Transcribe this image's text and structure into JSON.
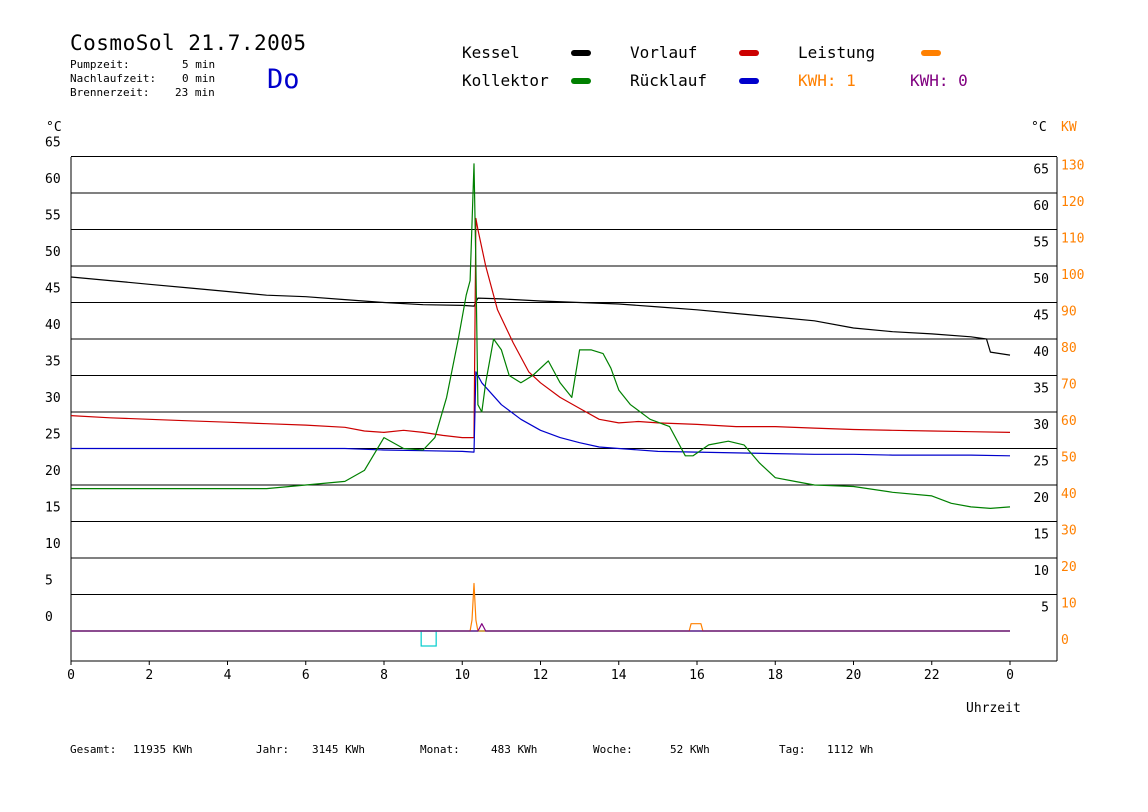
{
  "header": {
    "title": "CosmoSol 21.7.2005",
    "day": "Do",
    "pumpzeit_label": "Pumpzeit:",
    "pumpzeit_value": "5 min",
    "nachlaufzeit_label": "Nachlaufzeit:",
    "nachlaufzeit_value": "0 min",
    "brennerzeit_label": "Brennerzeit:",
    "brennerzeit_value": "23 min"
  },
  "legend": {
    "kessel": "Kessel",
    "kollektor": "Kollektor",
    "vorlauf": "Vorlauf",
    "ruecklauf": "Rücklauf",
    "leistung": "Leistung",
    "kwh1": "KWH: 1",
    "kwh0": "KWH: 0"
  },
  "colors": {
    "kessel": "#000000",
    "kollektor": "#008000",
    "vorlauf": "#cc0000",
    "ruecklauf": "#0000cc",
    "leistung": "#ff8000",
    "kwh1": "#ff8000",
    "kwh0": "#800080",
    "pump": "#00cccc",
    "kw_axis": "#ff8000",
    "day": "#0000cc"
  },
  "axes": {
    "left_unit": "°C",
    "right_unit_c": "°C",
    "right_unit_kw": "KW",
    "x_label": "Uhrzeit"
  },
  "footer": {
    "gesamt_label": "Gesamt:",
    "gesamt_value": "11935 KWh",
    "jahr_label": "Jahr:",
    "jahr_value": "3145 KWh",
    "monat_label": "Monat:",
    "monat_value": "483 KWh",
    "woche_label": "Woche:",
    "woche_value": "52 KWh",
    "tag_label": "Tag:",
    "tag_value": "1112 Wh"
  },
  "chart_data": {
    "type": "line",
    "xlabel": "Uhrzeit",
    "ylabel": "°C",
    "y2label": "KW",
    "xlim": [
      0,
      24
    ],
    "ylim": [
      -2,
      67
    ],
    "grid": true,
    "legend_placement": "top",
    "x_ticks": [
      "0",
      "2",
      "4",
      "6",
      "8",
      "10",
      "12",
      "14",
      "16",
      "18",
      "20",
      "22",
      "0"
    ],
    "y_ticks_left": [
      "0",
      "5",
      "10",
      "15",
      "20",
      "25",
      "30",
      "35",
      "40",
      "45",
      "50",
      "55",
      "60",
      "65"
    ],
    "y_ticks_right_c": [
      "5",
      "10",
      "15",
      "20",
      "25",
      "30",
      "35",
      "40",
      "45",
      "50",
      "55",
      "60",
      "65"
    ],
    "y_ticks_right_kw": [
      "0",
      "10",
      "20",
      "30",
      "40",
      "50",
      "60",
      "70",
      "80",
      "90",
      "100",
      "110",
      "120",
      "130"
    ],
    "series": [
      {
        "name": "Kessel",
        "color": "#000000",
        "x": [
          0,
          1,
          2,
          3,
          4,
          5,
          6,
          7,
          8,
          9,
          10,
          10.3,
          10.4,
          11,
          12,
          13,
          14,
          15,
          16,
          17,
          18,
          19,
          20,
          21,
          22,
          23,
          23.4,
          23.5,
          24
        ],
        "y": [
          48.5,
          48,
          47.5,
          47,
          46.5,
          46,
          45.8,
          45.4,
          45,
          44.7,
          44.6,
          44.5,
          45.6,
          45.5,
          45.2,
          45,
          44.8,
          44.4,
          44,
          43.5,
          43,
          42.5,
          41.5,
          41,
          40.7,
          40.3,
          40,
          38.2,
          37.8
        ]
      },
      {
        "name": "Kollektor",
        "color": "#008000",
        "x": [
          0,
          2,
          4,
          5,
          6,
          7,
          7.5,
          8,
          8.5,
          9,
          9.3,
          9.6,
          9.9,
          10.1,
          10.2,
          10.3,
          10.35,
          10.4,
          10.5,
          10.6,
          10.8,
          11,
          11.2,
          11.5,
          11.8,
          12.2,
          12.5,
          12.8,
          13,
          13.3,
          13.6,
          13.8,
          14,
          14.3,
          14.8,
          15.3,
          15.7,
          15.9,
          16.3,
          16.8,
          17.2,
          17.6,
          18,
          18.5,
          19,
          20,
          21,
          22,
          22.5,
          23,
          23.5,
          24
        ],
        "y": [
          19.5,
          19.5,
          19.5,
          19.5,
          20,
          20.5,
          22,
          26.5,
          25,
          24.8,
          26.5,
          32,
          40,
          46,
          48,
          64,
          50,
          31,
          30,
          34,
          40,
          38.5,
          35,
          34,
          35,
          37,
          34,
          32,
          38.5,
          38.5,
          38,
          36,
          33,
          31,
          29,
          28,
          24,
          24,
          25.5,
          26,
          25.5,
          23,
          21,
          20.5,
          20,
          19.8,
          19,
          18.5,
          17.5,
          17,
          16.8,
          17
        ]
      },
      {
        "name": "Vorlauf",
        "color": "#cc0000",
        "x": [
          0,
          1,
          2,
          3,
          4,
          5,
          6,
          7,
          7.5,
          8,
          8.5,
          9,
          9.5,
          10,
          10.3,
          10.35,
          10.4,
          10.6,
          10.9,
          11.3,
          11.7,
          12,
          12.5,
          13,
          13.5,
          14,
          14.5,
          15,
          16,
          17,
          18,
          19,
          20,
          21,
          22,
          23,
          24
        ],
        "y": [
          29.5,
          29.2,
          29,
          28.8,
          28.6,
          28.4,
          28.2,
          27.9,
          27.4,
          27.2,
          27.5,
          27.2,
          26.8,
          26.5,
          26.5,
          56.5,
          55,
          50,
          44,
          39.5,
          35.5,
          34,
          32,
          30.5,
          29,
          28.5,
          28.7,
          28.5,
          28.3,
          28,
          28,
          27.8,
          27.6,
          27.5,
          27.4,
          27.3,
          27.2
        ]
      },
      {
        "name": "Rücklauf",
        "color": "#0000cc",
        "x": [
          0,
          2,
          4,
          6,
          7,
          8,
          9,
          10,
          10.3,
          10.35,
          10.5,
          11,
          11.5,
          12,
          12.5,
          13,
          13.5,
          14,
          15,
          16,
          17,
          18,
          19,
          20,
          21,
          22,
          23,
          24
        ],
        "y": [
          25,
          25,
          25,
          25,
          25,
          24.8,
          24.7,
          24.6,
          24.5,
          35.5,
          34,
          31,
          29,
          27.5,
          26.5,
          25.8,
          25.2,
          25,
          24.6,
          24.5,
          24.4,
          24.3,
          24.2,
          24.2,
          24.1,
          24.1,
          24.1,
          24
        ]
      },
      {
        "name": "Leistung",
        "color": "#ff8000",
        "axis": "kw",
        "x": [
          0,
          10.2,
          10.25,
          10.3,
          10.35,
          10.4,
          15.8,
          15.85,
          15.95,
          16.05,
          16.1,
          16.15,
          24
        ],
        "y": [
          0,
          0,
          3,
          13,
          3,
          0,
          0,
          2,
          2,
          2,
          2,
          0,
          0
        ]
      },
      {
        "name": "KWH: 0",
        "color": "#800080",
        "axis": "kw",
        "x": [
          0,
          10.4,
          10.45,
          10.5,
          10.55,
          10.6,
          24
        ],
        "y": [
          0,
          0,
          1,
          2,
          1,
          0,
          0
        ]
      }
    ]
  }
}
